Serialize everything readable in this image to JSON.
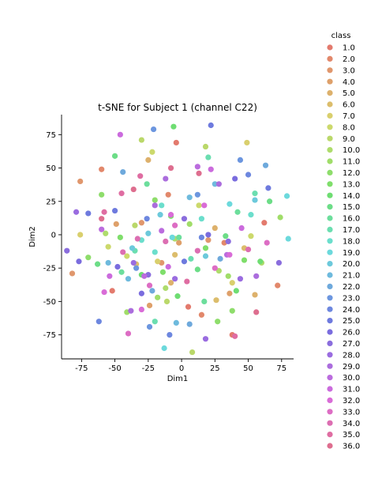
{
  "chart_data": {
    "type": "scatter",
    "title": "t-SNE for Subject 1 (channel C22)",
    "xlabel": "Dim1",
    "ylabel": "Dim2",
    "xlim": [
      -90,
      84
    ],
    "ylim": [
      -93,
      90
    ],
    "xticks": [
      -75,
      -50,
      -25,
      0,
      25,
      50,
      75
    ],
    "yticks": [
      -75,
      -50,
      -25,
      0,
      25,
      50,
      75
    ],
    "grid": false,
    "legend": {
      "title": "class",
      "placement": "right"
    },
    "palette": [
      "#e37a6d",
      "#e2886b",
      "#e0976d",
      "#dea06a",
      "#ddb16c",
      "#dcbd6c",
      "#d9cf6d",
      "#ccd96c",
      "#bad86a",
      "#aedc6c",
      "#a0dd69",
      "#8edd6b",
      "#7fde6b",
      "#6edd72",
      "#6cdd87",
      "#6cde9c",
      "#6bdeb0",
      "#6bdecc",
      "#6cd9dc",
      "#6cc9db",
      "#6ebadd",
      "#6ea9dc",
      "#6c96df",
      "#6d87df",
      "#6e7ade",
      "#7a6cde",
      "#8a6ddd",
      "#9a6ce0",
      "#ab6ddd",
      "#bb6cde",
      "#cb6bdd",
      "#d96cd7",
      "#dd6dc4",
      "#dc6eb2",
      "#df6da2",
      "#de6e8f"
    ],
    "series": [
      {
        "name": "1.0",
        "points": [
          [
            -4,
            69
          ],
          [
            38,
            -75
          ],
          [
            5,
            -54
          ],
          [
            62,
            9
          ],
          [
            -52,
            -42
          ]
        ]
      },
      {
        "name": "2.0",
        "points": [
          [
            -60,
            49
          ],
          [
            15,
            -60
          ],
          [
            32,
            -6
          ],
          [
            -10,
            30
          ],
          [
            72,
            -38
          ]
        ]
      },
      {
        "name": "3.0",
        "points": [
          [
            -76,
            40
          ],
          [
            -82,
            -29
          ],
          [
            -30,
            9
          ],
          [
            20,
            -4
          ],
          [
            -15,
            -21
          ]
        ]
      },
      {
        "name": "4.0",
        "points": [
          [
            -49,
            8
          ],
          [
            -24,
            -53
          ],
          [
            36,
            -44
          ],
          [
            -2,
            -6
          ]
        ]
      },
      {
        "name": "5.0",
        "points": [
          [
            -25,
            56
          ],
          [
            55,
            -45
          ],
          [
            -8,
            -36
          ],
          [
            25,
            5
          ]
        ]
      },
      {
        "name": "6.0",
        "points": [
          [
            -34,
            -22
          ],
          [
            26,
            -49
          ],
          [
            47,
            -10
          ],
          [
            -5,
            -15
          ]
        ]
      },
      {
        "name": "7.0",
        "points": [
          [
            49,
            69
          ],
          [
            -76,
            0
          ],
          [
            -18,
            -20
          ],
          [
            38,
            -36
          ]
        ]
      },
      {
        "name": "8.0",
        "points": [
          [
            -22,
            62
          ],
          [
            -41,
            -16
          ],
          [
            13,
            22
          ],
          [
            -55,
            -9
          ],
          [
            52,
            -1
          ]
        ]
      },
      {
        "name": "9.0",
        "points": [
          [
            -30,
            71
          ],
          [
            18,
            66
          ],
          [
            8,
            -88
          ],
          [
            -11,
            -50
          ],
          [
            -35,
            7
          ]
        ]
      },
      {
        "name": "10.0",
        "points": [
          [
            -12,
            -40
          ],
          [
            28,
            -27
          ],
          [
            -57,
            1
          ],
          [
            60,
            -21
          ],
          [
            -5,
            -3
          ]
        ]
      },
      {
        "name": "11.0",
        "points": [
          [
            -41,
            -58
          ],
          [
            35,
            -31
          ],
          [
            74,
            13
          ],
          [
            -18,
            -47
          ],
          [
            6,
            8
          ]
        ]
      },
      {
        "name": "12.0",
        "points": [
          [
            -60,
            30
          ],
          [
            27,
            -65
          ],
          [
            38,
            -57
          ],
          [
            -70,
            -17
          ],
          [
            -20,
            26
          ]
        ]
      },
      {
        "name": "13.0",
        "points": [
          [
            -46,
            -2
          ],
          [
            -14,
            -28
          ],
          [
            47,
            -19
          ],
          [
            -8,
            14
          ],
          [
            18,
            -10
          ]
        ]
      },
      {
        "name": "14.0",
        "points": [
          [
            -6,
            81
          ],
          [
            -30,
            -30
          ],
          [
            59,
            -20
          ],
          [
            -3,
            -46
          ],
          [
            41,
            -42
          ]
        ]
      },
      {
        "name": "15.0",
        "points": [
          [
            -50,
            59
          ],
          [
            12,
            -26
          ],
          [
            -63,
            -22
          ],
          [
            33,
            -1
          ],
          [
            66,
            25
          ]
        ]
      },
      {
        "name": "16.0",
        "points": [
          [
            -26,
            38
          ],
          [
            42,
            17
          ],
          [
            -45,
            -28
          ],
          [
            -2,
            -2
          ],
          [
            17,
            -50
          ]
        ]
      },
      {
        "name": "17.0",
        "points": [
          [
            20,
            58
          ],
          [
            -20,
            -65
          ],
          [
            55,
            31
          ],
          [
            -35,
            -12
          ],
          [
            7,
            -18
          ]
        ]
      },
      {
        "name": "18.0",
        "points": [
          [
            -20,
            -13
          ],
          [
            52,
            15
          ],
          [
            -15,
            22
          ],
          [
            15,
            12
          ],
          [
            -30,
            -4
          ]
        ]
      },
      {
        "name": "19.0",
        "points": [
          [
            79,
            29
          ],
          [
            80,
            -3
          ],
          [
            -13,
            -85
          ],
          [
            36,
            23
          ],
          [
            -7,
            -2
          ]
        ]
      },
      {
        "name": "20.0",
        "points": [
          [
            -37,
            -10
          ],
          [
            -16,
            15
          ],
          [
            55,
            26
          ],
          [
            -25,
            1
          ],
          [
            18,
            -16
          ]
        ]
      },
      {
        "name": "21.0",
        "points": [
          [
            -40,
            -33
          ],
          [
            -4,
            -66
          ],
          [
            25,
            38
          ],
          [
            -55,
            -21
          ],
          [
            6,
            28
          ]
        ]
      },
      {
        "name": "22.0",
        "points": [
          [
            -44,
            47
          ],
          [
            6,
            -67
          ],
          [
            29,
            -18
          ],
          [
            -22,
            -42
          ],
          [
            63,
            52
          ]
        ]
      },
      {
        "name": "23.0",
        "points": [
          [
            -21,
            79
          ],
          [
            -24,
            -69
          ],
          [
            44,
            56
          ],
          [
            -34,
            -25
          ],
          [
            12,
            30
          ]
        ]
      },
      {
        "name": "24.0",
        "points": [
          [
            -62,
            -65
          ],
          [
            -9,
            -75
          ],
          [
            50,
            45
          ],
          [
            -26,
            12
          ],
          [
            15,
            -2
          ]
        ]
      },
      {
        "name": "25.0",
        "points": [
          [
            22,
            82
          ],
          [
            -70,
            16
          ],
          [
            65,
            35
          ],
          [
            -50,
            18
          ],
          [
            2,
            -20
          ]
        ]
      },
      {
        "name": "26.0",
        "points": [
          [
            -77,
            -20
          ],
          [
            -48,
            -24
          ],
          [
            40,
            42
          ],
          [
            -30,
            -44
          ],
          [
            20,
            0
          ]
        ]
      },
      {
        "name": "27.0",
        "points": [
          [
            -86,
            -12
          ],
          [
            73,
            -21
          ],
          [
            -25,
            -30
          ],
          [
            35,
            -5
          ],
          [
            2,
            12
          ]
        ]
      },
      {
        "name": "28.0",
        "points": [
          [
            -79,
            17
          ],
          [
            44,
            -33
          ],
          [
            -5,
            -33
          ],
          [
            18,
            -78
          ],
          [
            -36,
            -21
          ]
        ]
      },
      {
        "name": "29.0",
        "points": [
          [
            -38,
            -57
          ],
          [
            56,
            -31
          ],
          [
            -12,
            42
          ],
          [
            28,
            38
          ],
          [
            -20,
            22
          ]
        ]
      },
      {
        "name": "30.0",
        "points": [
          [
            -28,
            -31
          ],
          [
            12,
            51
          ],
          [
            -60,
            4
          ],
          [
            34,
            -15
          ],
          [
            -15,
            3
          ]
        ]
      },
      {
        "name": "31.0",
        "points": [
          [
            -46,
            75
          ],
          [
            22,
            49
          ],
          [
            -54,
            -31
          ],
          [
            45,
            5
          ],
          [
            -10,
            -24
          ]
        ]
      },
      {
        "name": "32.0",
        "points": [
          [
            -58,
            -43
          ],
          [
            -30,
            -56
          ],
          [
            36,
            -15
          ],
          [
            -8,
            15
          ],
          [
            17,
            22
          ]
        ]
      },
      {
        "name": "33.0",
        "points": [
          [
            -40,
            -74
          ],
          [
            64,
            -6
          ],
          [
            -24,
            -38
          ],
          [
            25,
            -25
          ],
          [
            -5,
            7
          ]
        ]
      },
      {
        "name": "34.0",
        "points": [
          [
            -44,
            -13
          ],
          [
            -33,
            -3
          ],
          [
            50,
            -11
          ],
          [
            -12,
            -5
          ],
          [
            12,
            -12
          ]
        ]
      },
      {
        "name": "35.0",
        "points": [
          [
            -31,
            44
          ],
          [
            -45,
            31
          ],
          [
            -58,
            17
          ],
          [
            4,
            -35
          ],
          [
            40,
            -76
          ]
        ]
      },
      {
        "name": "36.0",
        "points": [
          [
            -60,
            12
          ],
          [
            -36,
            34
          ],
          [
            -8,
            50
          ],
          [
            13,
            46
          ],
          [
            56,
            -58
          ]
        ]
      }
    ]
  }
}
